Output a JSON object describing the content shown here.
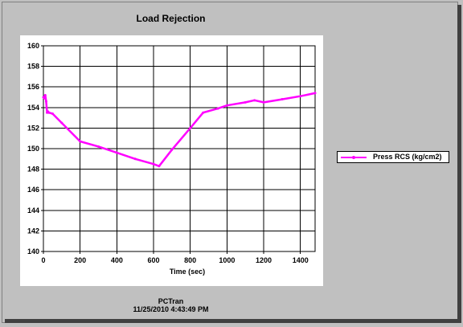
{
  "chart_data": {
    "type": "line",
    "title": "Load Rejection",
    "xlabel": "Time (sec)",
    "ylabel": "",
    "xlim": [
      0,
      1480
    ],
    "ylim": [
      140,
      160
    ],
    "x_ticks": [
      0,
      200,
      400,
      600,
      800,
      1000,
      1200,
      1400
    ],
    "y_ticks": [
      140,
      142,
      144,
      146,
      148,
      150,
      152,
      154,
      156,
      158,
      160
    ],
    "grid": true,
    "legend_position": "right",
    "series": [
      {
        "name": "Press RCS (kg/cm2)",
        "color": "#ff00ff",
        "x": [
          0,
          5,
          10,
          15,
          20,
          25,
          30,
          50,
          100,
          200,
          300,
          400,
          500,
          600,
          630,
          700,
          800,
          870,
          950,
          1000,
          1100,
          1150,
          1200,
          1300,
          1400,
          1480
        ],
        "y": [
          155.0,
          154.9,
          155.2,
          154.6,
          153.5,
          153.6,
          153.5,
          153.4,
          152.5,
          150.7,
          150.2,
          149.6,
          149.0,
          148.5,
          148.3,
          149.9,
          152.0,
          153.5,
          153.9,
          154.2,
          154.5,
          154.7,
          154.5,
          154.8,
          155.1,
          155.4
        ]
      }
    ]
  },
  "footer": {
    "line1": "PCTran",
    "line2": "11/25/2010 4:43:49 PM"
  }
}
